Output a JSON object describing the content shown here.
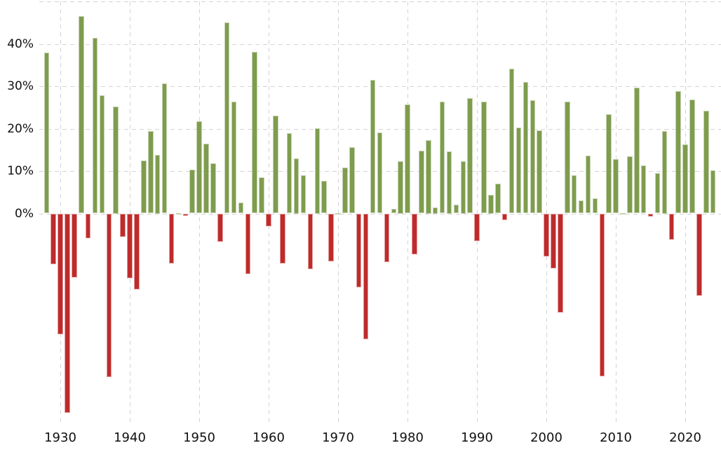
{
  "chart_data": {
    "type": "bar",
    "title": "",
    "xlabel": "",
    "ylabel": "",
    "legend": "none",
    "grid": "dashed",
    "colors": {
      "positive_bar": "#7E9C4E",
      "negative_bar": "#BF2B2B",
      "gridline": "#D4D4D4",
      "tick_label": "#111111",
      "background": "#FFFFFF"
    },
    "y_axis": {
      "range": [
        -50,
        50
      ],
      "tick_values": [
        0,
        10,
        20,
        30,
        40
      ],
      "tick_labels": [
        "0%",
        "10%",
        "20%",
        "30%",
        "40%"
      ],
      "gridline_values": [
        0,
        10,
        20,
        30,
        40,
        50
      ]
    },
    "x_axis": {
      "tick_values": [
        1930,
        1940,
        1950,
        1960,
        1970,
        1980,
        1990,
        2000,
        2010,
        2020
      ],
      "tick_labels": [
        "1930",
        "1940",
        "1950",
        "1960",
        "1970",
        "1980",
        "1990",
        "2000",
        "2010",
        "2020"
      ]
    },
    "x": [
      1928,
      1929,
      1930,
      1931,
      1932,
      1933,
      1934,
      1935,
      1936,
      1937,
      1938,
      1939,
      1940,
      1941,
      1942,
      1943,
      1944,
      1945,
      1946,
      1947,
      1948,
      1949,
      1950,
      1951,
      1952,
      1953,
      1954,
      1955,
      1956,
      1957,
      1958,
      1959,
      1960,
      1961,
      1962,
      1963,
      1964,
      1965,
      1966,
      1967,
      1968,
      1969,
      1970,
      1971,
      1972,
      1973,
      1974,
      1975,
      1976,
      1977,
      1978,
      1979,
      1980,
      1981,
      1982,
      1983,
      1984,
      1985,
      1986,
      1987,
      1988,
      1989,
      1990,
      1991,
      1992,
      1993,
      1994,
      1995,
      1996,
      1997,
      1998,
      1999,
      2000,
      2001,
      2002,
      2003,
      2004,
      2005,
      2006,
      2007,
      2008,
      2009,
      2010,
      2011,
      2012,
      2013,
      2014,
      2015,
      2016,
      2017,
      2018,
      2019,
      2020,
      2021,
      2022,
      2023,
      2024
    ],
    "values": [
      37.88,
      -11.91,
      -28.48,
      -47.07,
      -15.15,
      46.59,
      -5.94,
      41.37,
      27.92,
      -38.59,
      25.21,
      -5.45,
      -15.29,
      -17.86,
      12.43,
      19.45,
      13.8,
      30.72,
      -11.87,
      0.0,
      -0.65,
      10.26,
      21.78,
      16.46,
      11.78,
      -6.62,
      45.02,
      26.4,
      2.62,
      -14.31,
      38.06,
      8.48,
      -2.97,
      23.13,
      -11.81,
      18.89,
      12.97,
      9.06,
      -13.09,
      20.09,
      7.66,
      -11.36,
      0.1,
      10.79,
      15.63,
      -17.37,
      -29.72,
      31.55,
      19.15,
      -11.5,
      1.06,
      12.31,
      25.77,
      -9.73,
      14.76,
      17.27,
      1.4,
      26.33,
      14.62,
      2.03,
      12.4,
      27.25,
      -6.56,
      26.31,
      4.46,
      7.06,
      -1.54,
      34.11,
      20.26,
      31.01,
      26.67,
      19.53,
      -10.14,
      -13.04,
      -23.37,
      26.38,
      8.99,
      3.0,
      13.62,
      3.53,
      -38.49,
      23.45,
      12.78,
      0.0,
      13.41,
      29.6,
      11.39,
      -0.73,
      9.54,
      19.42,
      -6.24,
      28.88,
      16.26,
      26.89,
      -19.44,
      24.23,
      10.1
    ]
  }
}
